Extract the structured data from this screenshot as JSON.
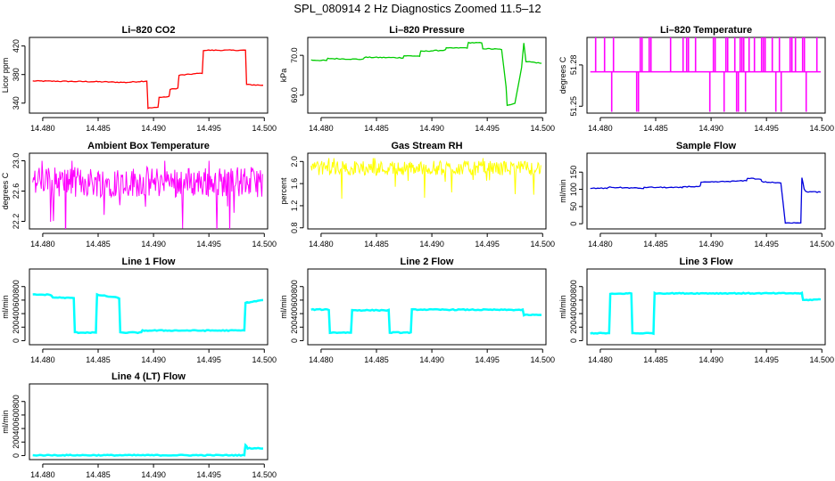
{
  "title": "SPL_080914  2 Hz Diagnostics Zoomed 11.5–12",
  "chart_data": [
    {
      "type": "line",
      "title": "Li–820 CO2",
      "ylabel": "Licor ppm",
      "color": "#ff0000",
      "xlim": [
        14.4788,
        14.5003
      ],
      "xticks": [
        "14.480",
        "14.485",
        "14.490",
        "14.495",
        "14.500"
      ],
      "ylim": [
        326,
        432
      ],
      "yticks": [
        340,
        380,
        420
      ],
      "ytick_labels": [
        "340",
        "380",
        "420"
      ],
      "series": [
        {
          "name": "CO2",
          "x": [
            14.4791,
            14.485,
            14.4875,
            14.4894,
            14.4895,
            14.4904,
            14.4905,
            14.4914,
            14.4915,
            14.4922,
            14.4923,
            14.4944,
            14.4945,
            14.4983,
            14.4984,
            14.4999
          ],
          "y": [
            371,
            370,
            369,
            371,
            333,
            334,
            348,
            349,
            359,
            361,
            379,
            382,
            414,
            414,
            366,
            365
          ]
        }
      ]
    },
    {
      "type": "line",
      "title": "Li–820 Pressure",
      "ylabel": "kPa",
      "color": "#00cc00",
      "xlim": [
        14.4788,
        14.5003
      ],
      "xticks": [
        "14.480",
        "14.485",
        "14.490",
        "14.495",
        "14.500"
      ],
      "ylim": [
        68.55,
        70.45
      ],
      "yticks": [
        69.0,
        70.0
      ],
      "ytick_labels": [
        "69.0",
        "70.0"
      ],
      "series": [
        {
          "name": "Pressure",
          "x": [
            14.4791,
            14.4805,
            14.4806,
            14.4838,
            14.4839,
            14.4874,
            14.4875,
            14.4889,
            14.489,
            14.4912,
            14.4913,
            14.4932,
            14.4933,
            14.4945,
            14.4946,
            14.4963,
            14.4967,
            14.4968,
            14.4975,
            14.4981,
            14.4983,
            14.4985,
            14.4999
          ],
          "y": [
            69.88,
            69.87,
            69.92,
            69.9,
            69.95,
            69.94,
            69.99,
            69.98,
            70.1,
            70.13,
            70.18,
            70.19,
            70.32,
            70.31,
            70.17,
            70.15,
            69.2,
            68.75,
            68.8,
            69.7,
            70.3,
            69.85,
            69.8
          ]
        }
      ]
    },
    {
      "type": "line",
      "title": "Li–820 Temperature",
      "ylabel": "degrees C",
      "color": "#ff00ff",
      "xlim": [
        14.4788,
        14.5003
      ],
      "xticks": [
        "14.480",
        "14.485",
        "14.490",
        "14.495",
        "14.500"
      ],
      "ylim": [
        51.245,
        51.3
      ],
      "yticks": [
        51.25,
        51.28
      ],
      "ytick_labels": [
        "51.25",
        "51.28"
      ],
      "series": [
        {
          "name": "Temperature",
          "baseline": 51.275,
          "high": 51.3,
          "low": 51.246
        }
      ]
    },
    {
      "type": "line",
      "title": "Ambient Box Temperature",
      "ylabel": "degrees C",
      "color": "#ff00ff",
      "xlim": [
        14.4788,
        14.5003
      ],
      "xticks": [
        "14.480",
        "14.485",
        "14.490",
        "14.495",
        "14.500"
      ],
      "ylim": [
        22.1,
        23.1
      ],
      "yticks": [
        22.2,
        22.6,
        23.0
      ],
      "ytick_labels": [
        "22.2",
        "22.6",
        "23.0"
      ],
      "series": [
        {
          "name": "Ambient",
          "center": 22.72,
          "spread": 0.2
        }
      ]
    },
    {
      "type": "line",
      "title": "Gas Stream RH",
      "ylabel": "percent",
      "color": "#ffff00",
      "xlim": [
        14.4788,
        14.5003
      ],
      "xticks": [
        "14.480",
        "14.485",
        "14.490",
        "14.495",
        "14.500"
      ],
      "ylim": [
        0.78,
        2.15
      ],
      "yticks": [
        0.8,
        1.2,
        1.6,
        2.0
      ],
      "ytick_labels": [
        "0.8",
        "1.2",
        "1.6",
        "2.0"
      ],
      "series": [
        {
          "name": "RH",
          "center": 1.88,
          "spread": 0.13
        }
      ]
    },
    {
      "type": "line",
      "title": "Sample Flow",
      "ylabel": "ml/min",
      "color": "#0000dd",
      "xlim": [
        14.4788,
        14.5003
      ],
      "xticks": [
        "14.480",
        "14.485",
        "14.490",
        "14.495",
        "14.500"
      ],
      "ylim": [
        -15,
        205
      ],
      "yticks": [
        0,
        50,
        100,
        150
      ],
      "ytick_labels": [
        "0",
        "50",
        "100",
        "150"
      ],
      "series": [
        {
          "name": "Sample",
          "x": [
            14.4791,
            14.4806,
            14.4807,
            14.4839,
            14.484,
            14.4874,
            14.4875,
            14.489,
            14.4891,
            14.4932,
            14.4933,
            14.4945,
            14.4946,
            14.4963,
            14.4967,
            14.4981,
            14.4982,
            14.4984,
            14.4986,
            14.4999
          ],
          "y": [
            103,
            103,
            106,
            103,
            106,
            105,
            108,
            108,
            120,
            125,
            133,
            129,
            122,
            118,
            3,
            3,
            135,
            100,
            93,
            92
          ]
        }
      ]
    },
    {
      "type": "line",
      "title": "Line 1 Flow",
      "ylabel": "ml/min",
      "color": "#00ffff",
      "xlim": [
        14.4788,
        14.5003
      ],
      "xticks": [
        "14.480",
        "14.485",
        "14.490",
        "14.495",
        "14.500"
      ],
      "ylim": [
        -60,
        1060
      ],
      "yticks": [
        0,
        200,
        400,
        600,
        800
      ],
      "ytick_labels": [
        "0",
        "200",
        "400",
        "600",
        "800"
      ],
      "series": [
        {
          "name": "Line1",
          "x": [
            14.4791,
            14.4807,
            14.4809,
            14.4828,
            14.4829,
            14.4848,
            14.4849,
            14.4869,
            14.487,
            14.4889,
            14.489,
            14.4982,
            14.4983,
            14.4999
          ],
          "y": [
            680,
            680,
            640,
            630,
            120,
            120,
            680,
            630,
            120,
            120,
            150,
            150,
            560,
            600
          ]
        }
      ]
    },
    {
      "type": "line",
      "title": "Line 2 Flow",
      "ylabel": "ml/min",
      "color": "#00ffff",
      "xlim": [
        14.4788,
        14.5003
      ],
      "xticks": [
        "14.480",
        "14.485",
        "14.490",
        "14.495",
        "14.500"
      ],
      "ylim": [
        -60,
        1060
      ],
      "yticks": [
        0,
        200,
        400,
        600,
        800
      ],
      "ytick_labels": [
        "0",
        "200",
        "400",
        "600",
        "800"
      ],
      "series": [
        {
          "name": "Line2",
          "x": [
            14.4791,
            14.4807,
            14.4808,
            14.4827,
            14.4828,
            14.4861,
            14.4862,
            14.4881,
            14.4882,
            14.4982,
            14.4983,
            14.4999
          ],
          "y": [
            460,
            460,
            120,
            120,
            450,
            450,
            120,
            120,
            460,
            455,
            380,
            380
          ]
        }
      ]
    },
    {
      "type": "line",
      "title": "Line 3 Flow",
      "ylabel": "ml/min",
      "color": "#00ffff",
      "xlim": [
        14.4788,
        14.5003
      ],
      "xticks": [
        "14.480",
        "14.485",
        "14.490",
        "14.495",
        "14.500"
      ],
      "ylim": [
        -60,
        1060
      ],
      "yticks": [
        0,
        200,
        400,
        600,
        800
      ],
      "ytick_labels": [
        "0",
        "200",
        "400",
        "600",
        "800"
      ],
      "series": [
        {
          "name": "Line3",
          "x": [
            14.4791,
            14.4808,
            14.4809,
            14.4828,
            14.4829,
            14.4848,
            14.4849,
            14.4982,
            14.4983,
            14.4999
          ],
          "y": [
            110,
            110,
            690,
            700,
            110,
            110,
            700,
            700,
            600,
            610
          ]
        }
      ]
    },
    {
      "type": "line",
      "title": "Line 4 (LT) Flow",
      "ylabel": "ml/min",
      "color": "#00ffff",
      "xlim": [
        14.4788,
        14.5003
      ],
      "xticks": [
        "14.480",
        "14.485",
        "14.490",
        "14.495",
        "14.500"
      ],
      "ylim": [
        -60,
        1060
      ],
      "yticks": [
        0,
        200,
        400,
        600,
        800
      ],
      "ytick_labels": [
        "0",
        "200",
        "400",
        "600",
        "800"
      ],
      "series": [
        {
          "name": "Line4",
          "x": [
            14.4791,
            14.4982,
            14.4983,
            14.4985,
            14.4999
          ],
          "y": [
            5,
            5,
            160,
            110,
            105
          ]
        }
      ]
    }
  ]
}
